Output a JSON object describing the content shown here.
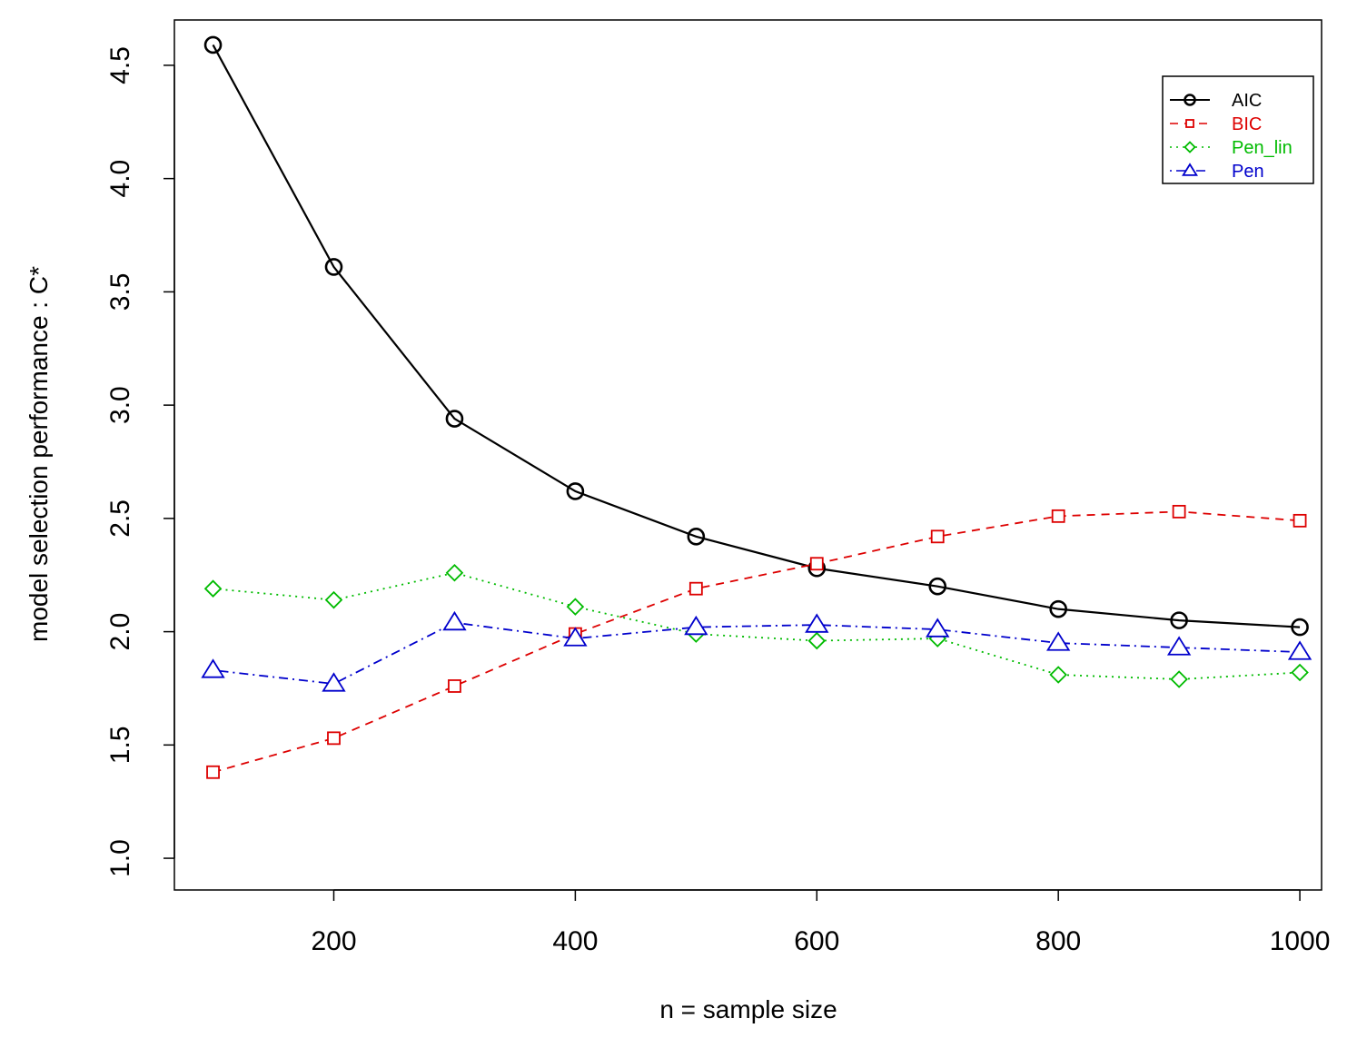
{
  "chart_data": {
    "type": "line",
    "title": "",
    "xlabel": "n = sample size",
    "ylabel": "model selection performance : C*",
    "xlim": [
      68,
      1018
    ],
    "ylim": [
      0.86,
      4.7
    ],
    "xticks": [
      200,
      400,
      600,
      800,
      1000
    ],
    "xtick_labels": [
      "200",
      "400",
      "600",
      "800",
      "1000"
    ],
    "yticks": [
      1.0,
      1.5,
      2.0,
      2.5,
      3.0,
      3.5,
      4.0,
      4.5
    ],
    "ytick_labels": [
      "1.0",
      "1.5",
      "2.0",
      "2.5",
      "3.0",
      "3.5",
      "4.0",
      "4.5"
    ],
    "grid": false,
    "legend_position": "top-right",
    "x": [
      100,
      200,
      300,
      400,
      500,
      600,
      700,
      800,
      900,
      1000
    ],
    "series": [
      {
        "name": "AIC",
        "color": "#000000",
        "marker": "circle",
        "line_style": "solid",
        "values": [
          4.59,
          3.61,
          2.94,
          2.62,
          2.42,
          2.28,
          2.2,
          2.1,
          2.05,
          2.02
        ]
      },
      {
        "name": "BIC",
        "color": "#dd0000",
        "marker": "square",
        "line_style": "dashed",
        "values": [
          1.38,
          1.53,
          1.76,
          1.99,
          2.19,
          2.3,
          2.42,
          2.51,
          2.53,
          2.49
        ]
      },
      {
        "name": "Pen_lin",
        "color": "#00bb00",
        "marker": "diamond",
        "line_style": "dotted",
        "values": [
          2.19,
          2.14,
          2.26,
          2.11,
          1.99,
          1.96,
          1.97,
          1.81,
          1.79,
          1.82
        ]
      },
      {
        "name": "Pen",
        "color": "#0000cc",
        "marker": "triangle",
        "line_style": "dotdash",
        "values": [
          1.83,
          1.77,
          2.04,
          1.97,
          2.02,
          2.03,
          2.01,
          1.95,
          1.93,
          1.91
        ]
      }
    ]
  }
}
